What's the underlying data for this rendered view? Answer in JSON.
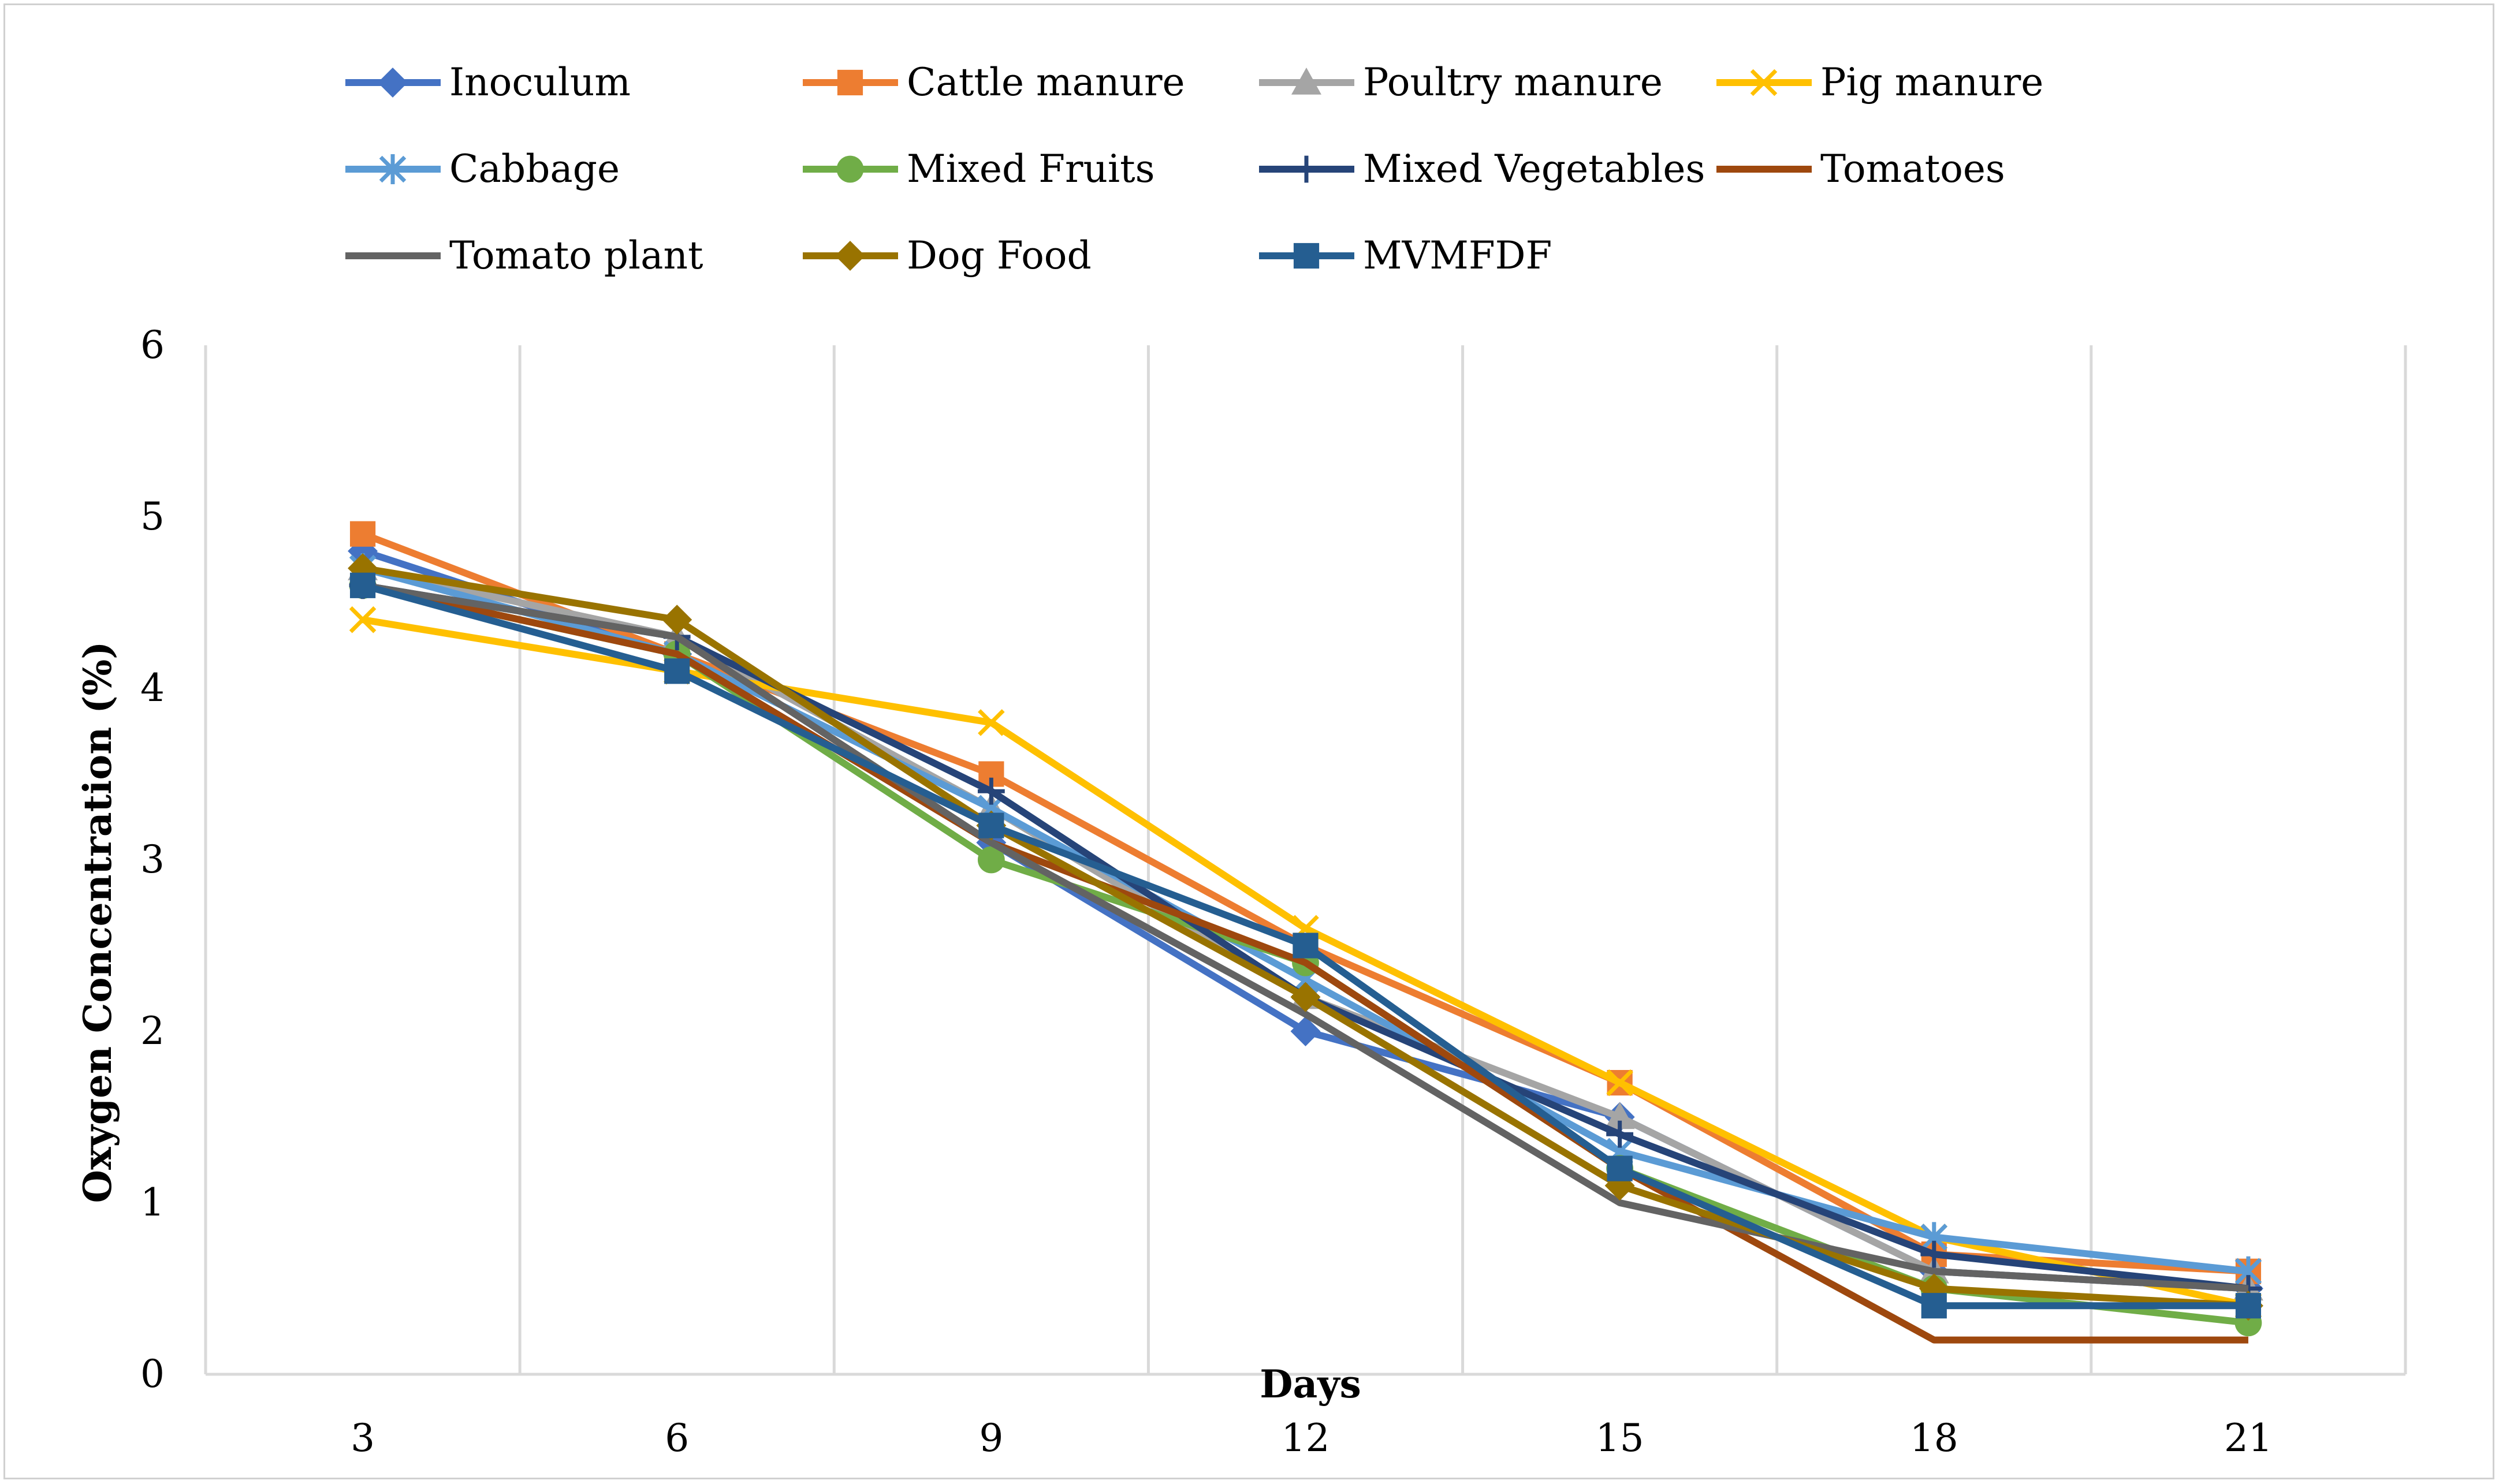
{
  "chart_data": {
    "type": "line",
    "title": "",
    "xlabel": "Days",
    "ylabel": "Oxygen Concentration (%)",
    "x": [
      3,
      6,
      9,
      12,
      15,
      18,
      21
    ],
    "x_tick_labels": [
      "3",
      "6",
      "9",
      "12",
      "15",
      "18",
      "21"
    ],
    "ylim": [
      0,
      6
    ],
    "y_ticks": [
      0,
      1,
      2,
      3,
      4,
      5,
      6
    ],
    "y_tick_labels": [
      "0",
      "1",
      "2",
      "3",
      "4",
      "5",
      "6"
    ],
    "grid": "vertical",
    "legend_position": "top",
    "series": [
      {
        "name": "Inoculum",
        "color": "#4472C4",
        "marker": "diamond",
        "values": [
          4.8,
          4.2,
          3.1,
          2.0,
          1.5,
          0.6,
          0.5
        ]
      },
      {
        "name": "Cattle manure",
        "color": "#ED7D31",
        "marker": "square",
        "values": [
          4.9,
          4.2,
          3.5,
          2.5,
          1.7,
          0.7,
          0.6
        ]
      },
      {
        "name": "Poultry manure",
        "color": "#A5A5A5",
        "marker": "triangle",
        "values": [
          4.7,
          4.3,
          3.3,
          2.2,
          1.5,
          0.6,
          0.5
        ]
      },
      {
        "name": "Pig manure",
        "color": "#FFC000",
        "marker": "x",
        "values": [
          4.4,
          4.1,
          3.8,
          2.6,
          1.7,
          0.8,
          0.4
        ]
      },
      {
        "name": "Cabbage",
        "color": "#5B9BD5",
        "marker": "asterisk",
        "values": [
          4.7,
          4.2,
          3.3,
          2.3,
          1.3,
          0.8,
          0.6
        ]
      },
      {
        "name": "Mixed Fruits",
        "color": "#70AD47",
        "marker": "circle",
        "values": [
          4.6,
          4.2,
          3.0,
          2.4,
          1.2,
          0.5,
          0.3
        ]
      },
      {
        "name": "Mixed Vegetables",
        "color": "#264478",
        "marker": "plus",
        "values": [
          4.6,
          4.3,
          3.4,
          2.2,
          1.4,
          0.7,
          0.5
        ]
      },
      {
        "name": "Tomatoes",
        "color": "#9E480E",
        "marker": "none",
        "values": [
          4.6,
          4.2,
          3.1,
          2.4,
          1.2,
          0.2,
          0.2
        ]
      },
      {
        "name": "Tomato plant",
        "color": "#636363",
        "marker": "none",
        "values": [
          4.6,
          4.3,
          3.1,
          2.1,
          1.0,
          0.6,
          0.5
        ]
      },
      {
        "name": "Dog Food",
        "color": "#997300",
        "marker": "diamond",
        "values": [
          4.7,
          4.4,
          3.2,
          2.2,
          1.1,
          0.5,
          0.4
        ]
      },
      {
        "name": "MVMFDF",
        "color": "#255E91",
        "marker": "square",
        "values": [
          4.6,
          4.1,
          3.2,
          2.5,
          1.2,
          0.4,
          0.4
        ]
      }
    ]
  }
}
